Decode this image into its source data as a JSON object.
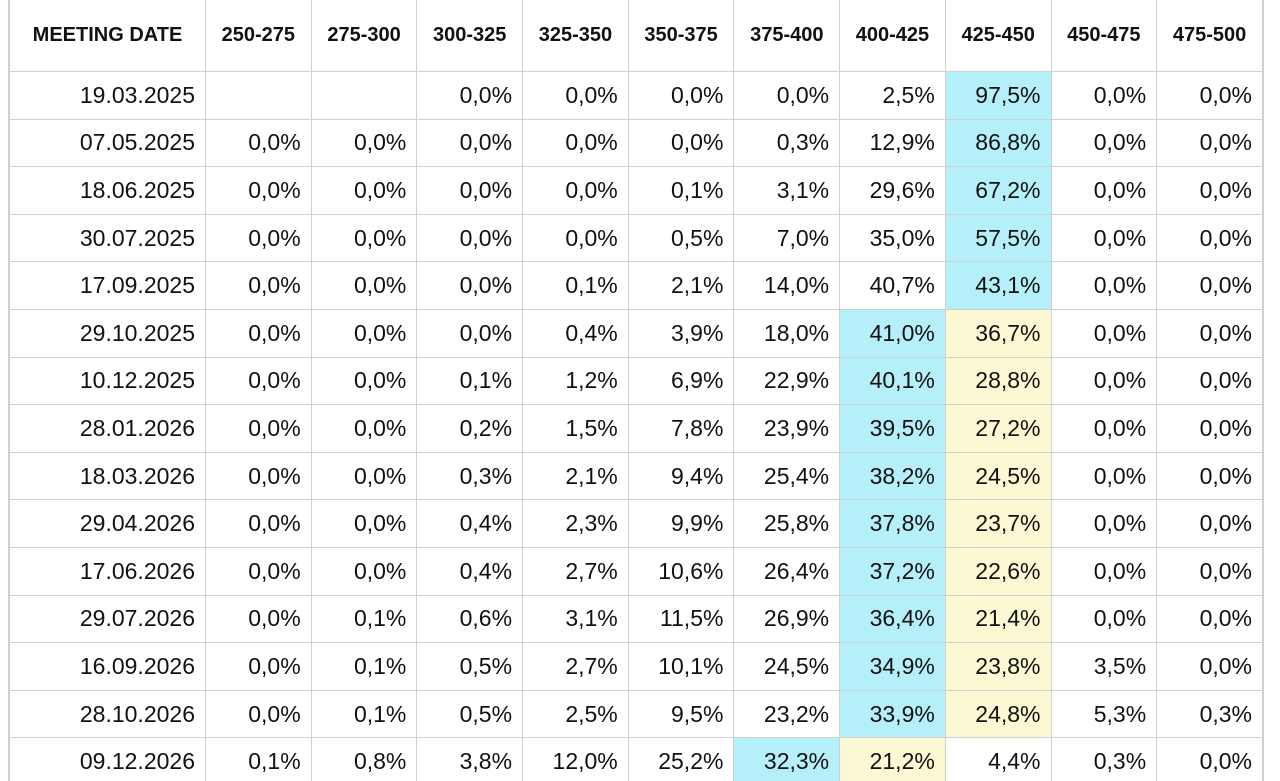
{
  "table": {
    "columns": [
      "MEETING DATE",
      "250-275",
      "275-300",
      "300-325",
      "325-350",
      "350-375",
      "375-400",
      "400-425",
      "425-450",
      "450-475",
      "475-500"
    ],
    "highlight_colors": {
      "blue": "#b5eff9",
      "yellow": "#fbf8d3"
    },
    "rows": [
      {
        "cells": [
          "19.03.2025",
          null,
          null,
          "0,0%",
          "0,0%",
          "0,0%",
          "0,0%",
          "2,5%",
          "97,5%",
          "0,0%",
          "0,0%"
        ],
        "blue": 8,
        "yellow": null
      },
      {
        "cells": [
          "07.05.2025",
          "0,0%",
          "0,0%",
          "0,0%",
          "0,0%",
          "0,0%",
          "0,3%",
          "12,9%",
          "86,8%",
          "0,0%",
          "0,0%"
        ],
        "blue": 8,
        "yellow": null
      },
      {
        "cells": [
          "18.06.2025",
          "0,0%",
          "0,0%",
          "0,0%",
          "0,0%",
          "0,1%",
          "3,1%",
          "29,6%",
          "67,2%",
          "0,0%",
          "0,0%"
        ],
        "blue": 8,
        "yellow": null
      },
      {
        "cells": [
          "30.07.2025",
          "0,0%",
          "0,0%",
          "0,0%",
          "0,0%",
          "0,5%",
          "7,0%",
          "35,0%",
          "57,5%",
          "0,0%",
          "0,0%"
        ],
        "blue": 8,
        "yellow": null
      },
      {
        "cells": [
          "17.09.2025",
          "0,0%",
          "0,0%",
          "0,0%",
          "0,1%",
          "2,1%",
          "14,0%",
          "40,7%",
          "43,1%",
          "0,0%",
          "0,0%"
        ],
        "blue": 8,
        "yellow": null
      },
      {
        "cells": [
          "29.10.2025",
          "0,0%",
          "0,0%",
          "0,0%",
          "0,4%",
          "3,9%",
          "18,0%",
          "41,0%",
          "36,7%",
          "0,0%",
          "0,0%"
        ],
        "blue": 7,
        "yellow": 8
      },
      {
        "cells": [
          "10.12.2025",
          "0,0%",
          "0,0%",
          "0,1%",
          "1,2%",
          "6,9%",
          "22,9%",
          "40,1%",
          "28,8%",
          "0,0%",
          "0,0%"
        ],
        "blue": 7,
        "yellow": 8
      },
      {
        "cells": [
          "28.01.2026",
          "0,0%",
          "0,0%",
          "0,2%",
          "1,5%",
          "7,8%",
          "23,9%",
          "39,5%",
          "27,2%",
          "0,0%",
          "0,0%"
        ],
        "blue": 7,
        "yellow": 8
      },
      {
        "cells": [
          "18.03.2026",
          "0,0%",
          "0,0%",
          "0,3%",
          "2,1%",
          "9,4%",
          "25,4%",
          "38,2%",
          "24,5%",
          "0,0%",
          "0,0%"
        ],
        "blue": 7,
        "yellow": 8
      },
      {
        "cells": [
          "29.04.2026",
          "0,0%",
          "0,0%",
          "0,4%",
          "2,3%",
          "9,9%",
          "25,8%",
          "37,8%",
          "23,7%",
          "0,0%",
          "0,0%"
        ],
        "blue": 7,
        "yellow": 8
      },
      {
        "cells": [
          "17.06.2026",
          "0,0%",
          "0,0%",
          "0,4%",
          "2,7%",
          "10,6%",
          "26,4%",
          "37,2%",
          "22,6%",
          "0,0%",
          "0,0%"
        ],
        "blue": 7,
        "yellow": 8
      },
      {
        "cells": [
          "29.07.2026",
          "0,0%",
          "0,1%",
          "0,6%",
          "3,1%",
          "11,5%",
          "26,9%",
          "36,4%",
          "21,4%",
          "0,0%",
          "0,0%"
        ],
        "blue": 7,
        "yellow": 8
      },
      {
        "cells": [
          "16.09.2026",
          "0,0%",
          "0,1%",
          "0,5%",
          "2,7%",
          "10,1%",
          "24,5%",
          "34,9%",
          "23,8%",
          "3,5%",
          "0,0%"
        ],
        "blue": 7,
        "yellow": 8
      },
      {
        "cells": [
          "28.10.2026",
          "0,0%",
          "0,1%",
          "0,5%",
          "2,5%",
          "9,5%",
          "23,2%",
          "33,9%",
          "24,8%",
          "5,3%",
          "0,3%"
        ],
        "blue": 7,
        "yellow": 8
      },
      {
        "cells": [
          "09.12.2026",
          "0,1%",
          "0,8%",
          "3,8%",
          "12,0%",
          "25,2%",
          "32,3%",
          "21,2%",
          "4,4%",
          "0,3%",
          "0,0%"
        ],
        "blue": 6,
        "yellow": 7
      }
    ]
  }
}
